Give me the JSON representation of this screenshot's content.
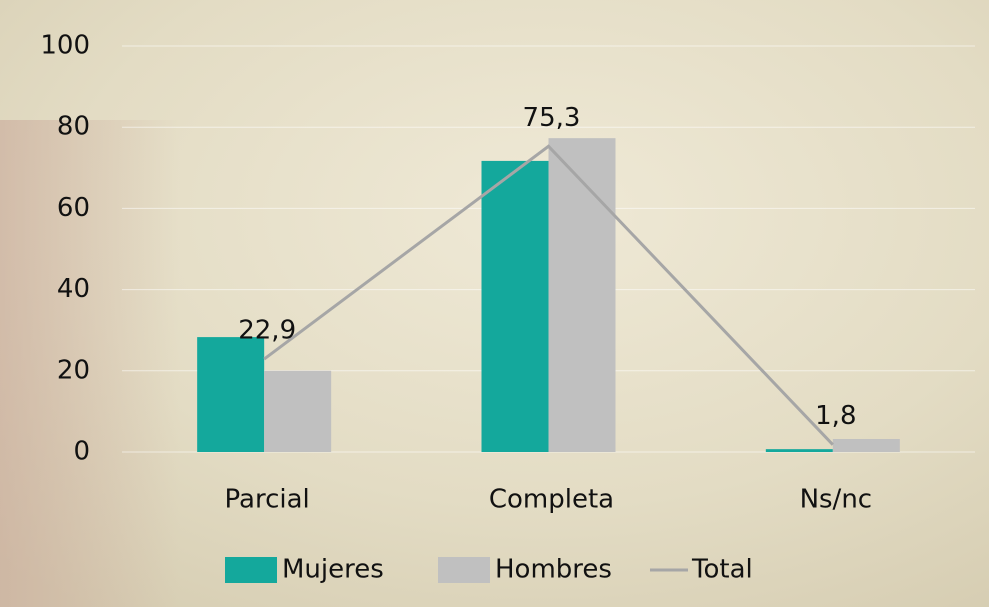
{
  "chart_data": {
    "type": "bar",
    "categories": [
      "Parcial",
      "Completa",
      "Ns/nc"
    ],
    "series": [
      {
        "name": "Mujeres",
        "color": "#14a89c",
        "values": [
          28.3,
          71.7,
          0.7
        ]
      },
      {
        "name": "Hombres",
        "color": "#c0c0c0",
        "values": [
          20,
          77.3,
          3.2
        ]
      },
      {
        "name": "Total",
        "type": "line",
        "color": "#a6a6a6",
        "values": [
          22.9,
          75.3,
          1.8
        ],
        "value_labels": [
          "22,9",
          "75,3",
          "1,8"
        ]
      }
    ],
    "ylim": [
      0,
      100
    ],
    "yticks": [
      0,
      20,
      40,
      60,
      80,
      100
    ],
    "grid": true,
    "legend": "bottom"
  }
}
